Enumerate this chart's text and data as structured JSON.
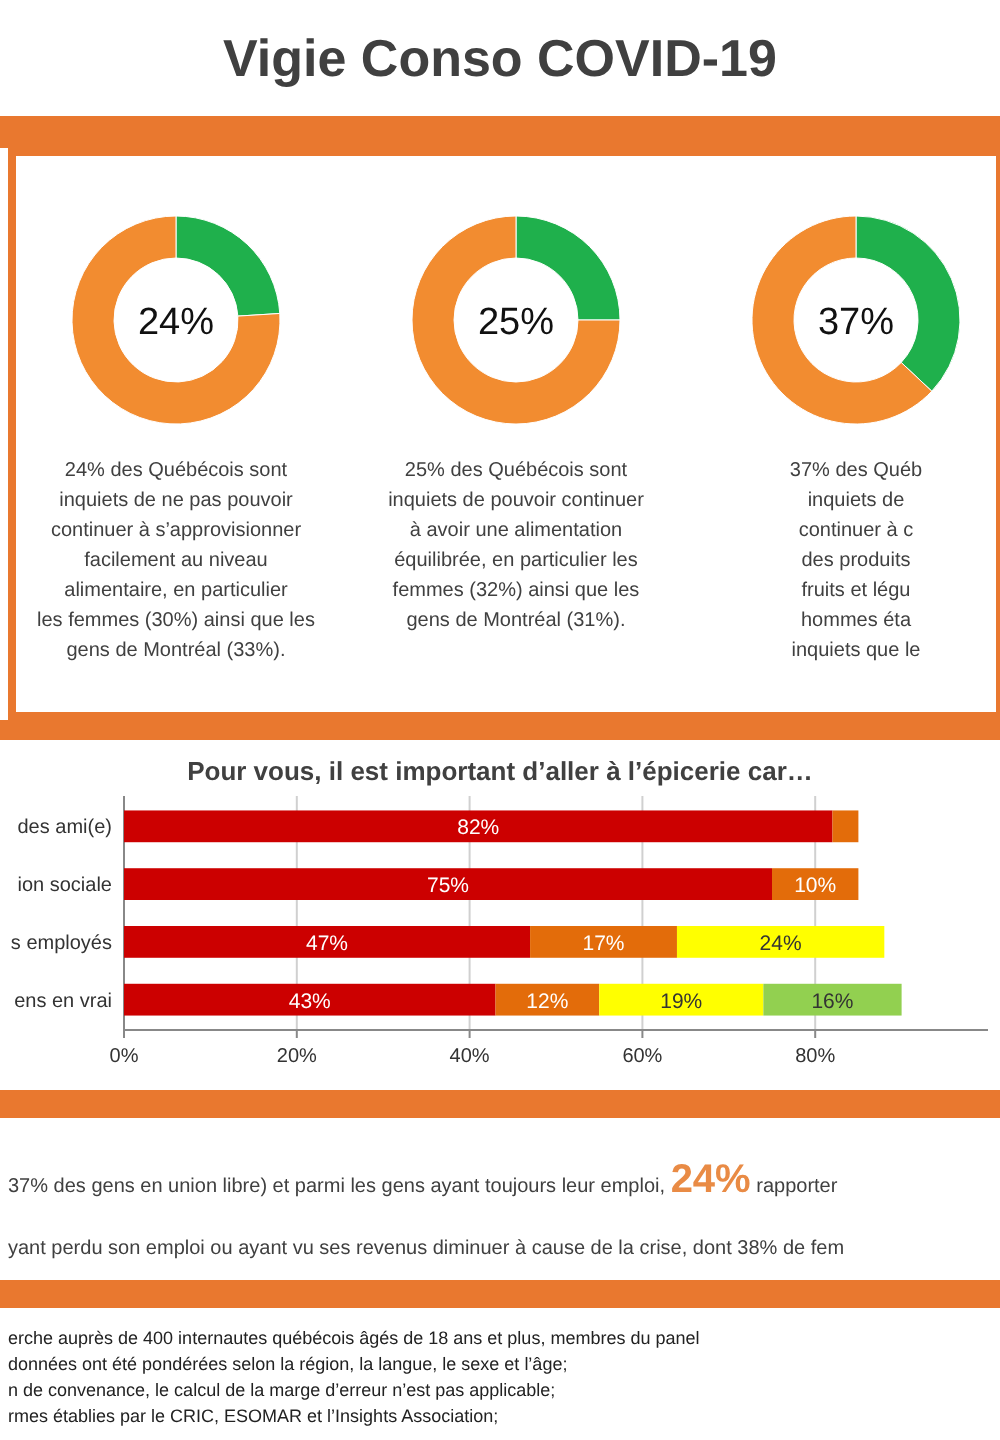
{
  "chart_data": [
    {
      "type": "donut",
      "title": "Vigie Conso COVID-19",
      "categories": [
        null,
        null
      ],
      "values": [
        24,
        76
      ],
      "colors": [
        "#1fb04c",
        "#f28c30"
      ],
      "annotations": [
        "24%",
        "24% des Québécois sont inquiets de ne pas pouvoir continuer à s’approvisionner facilement au niveau alimentaire, en particulier les femmes (30%) ainsi que les gens de Montréal (33%)."
      ]
    },
    {
      "type": "donut",
      "categories": [
        null,
        null
      ],
      "values": [
        25,
        75
      ],
      "colors": [
        "#1fb04c",
        "#f28c30"
      ],
      "annotations": [
        "25%",
        "25% des Québécois sont inquiets de pouvoir continuer à avoir une alimentation équilibrée, en particulier les femmes (32%) ainsi que les gens de Montréal (31%)."
      ]
    },
    {
      "type": "donut",
      "categories": [
        null,
        null
      ],
      "values": [
        37,
        63
      ],
      "colors": [
        "#1fb04c",
        "#f28c30"
      ],
      "annotations": [
        "37%",
        "37% des Québ",
        "inquiets de",
        "continuer à c",
        "des produits",
        "fruits et légu",
        "hommes éta",
        "inquiets que le"
      ]
    },
    {
      "type": "bar",
      "orientation": "horizontal",
      "stacked": true,
      "title": "Pour vous, il est important d’aller à l’épicerie car…",
      "categories": [
        "des ami(e)",
        "ion sociale",
        "s employés",
        "ens en vrai"
      ],
      "series": [
        {
          "color": "#cc0000",
          "values": [
            82,
            75,
            47,
            43
          ],
          "value_labels": [
            "82%",
            "75%",
            "47%",
            "43%"
          ]
        },
        {
          "color": "#e36c0a",
          "values": [
            3,
            10,
            17,
            12
          ],
          "value_labels": [
            null,
            "10%",
            "17%",
            "12%"
          ]
        },
        {
          "color": "#ffff00",
          "values": [
            null,
            null,
            24,
            19
          ],
          "value_labels": [
            null,
            null,
            "24%",
            "19%"
          ]
        },
        {
          "color": "#92d050",
          "values": [
            null,
            null,
            null,
            16
          ],
          "value_labels": [
            null,
            null,
            null,
            "16%"
          ]
        }
      ],
      "xlim": [
        0,
        100
      ],
      "xticks": [
        {
          "value": 0,
          "label": "0%"
        },
        {
          "value": 20,
          "label": "20%"
        },
        {
          "value": 40,
          "label": "40%"
        },
        {
          "value": 60,
          "label": "60%"
        },
        {
          "value": 80,
          "label": "80%"
        }
      ],
      "grid": "x"
    },
    {
      "type": "other",
      "annotations": [
        "37% des gens en union libre) et parmi les gens ayant toujours leur emploi, ",
        "24%",
        " rapporter",
        "yant perdu son emploi ou ayant vu ses revenus diminuer à cause de la crise, dont 38% de fem",
        "erche auprès de 400 internautes québécois âgés de 18 ans et plus, membres du panel",
        "données ont été pondérées selon la région, la langue, le sexe et l’âge;",
        "n de convenance, le calcul de la marge d’erreur n’est pas applicable;",
        "rmes établies par le CRIC, ESOMAR et l’Insights Association;"
      ]
    }
  ]
}
